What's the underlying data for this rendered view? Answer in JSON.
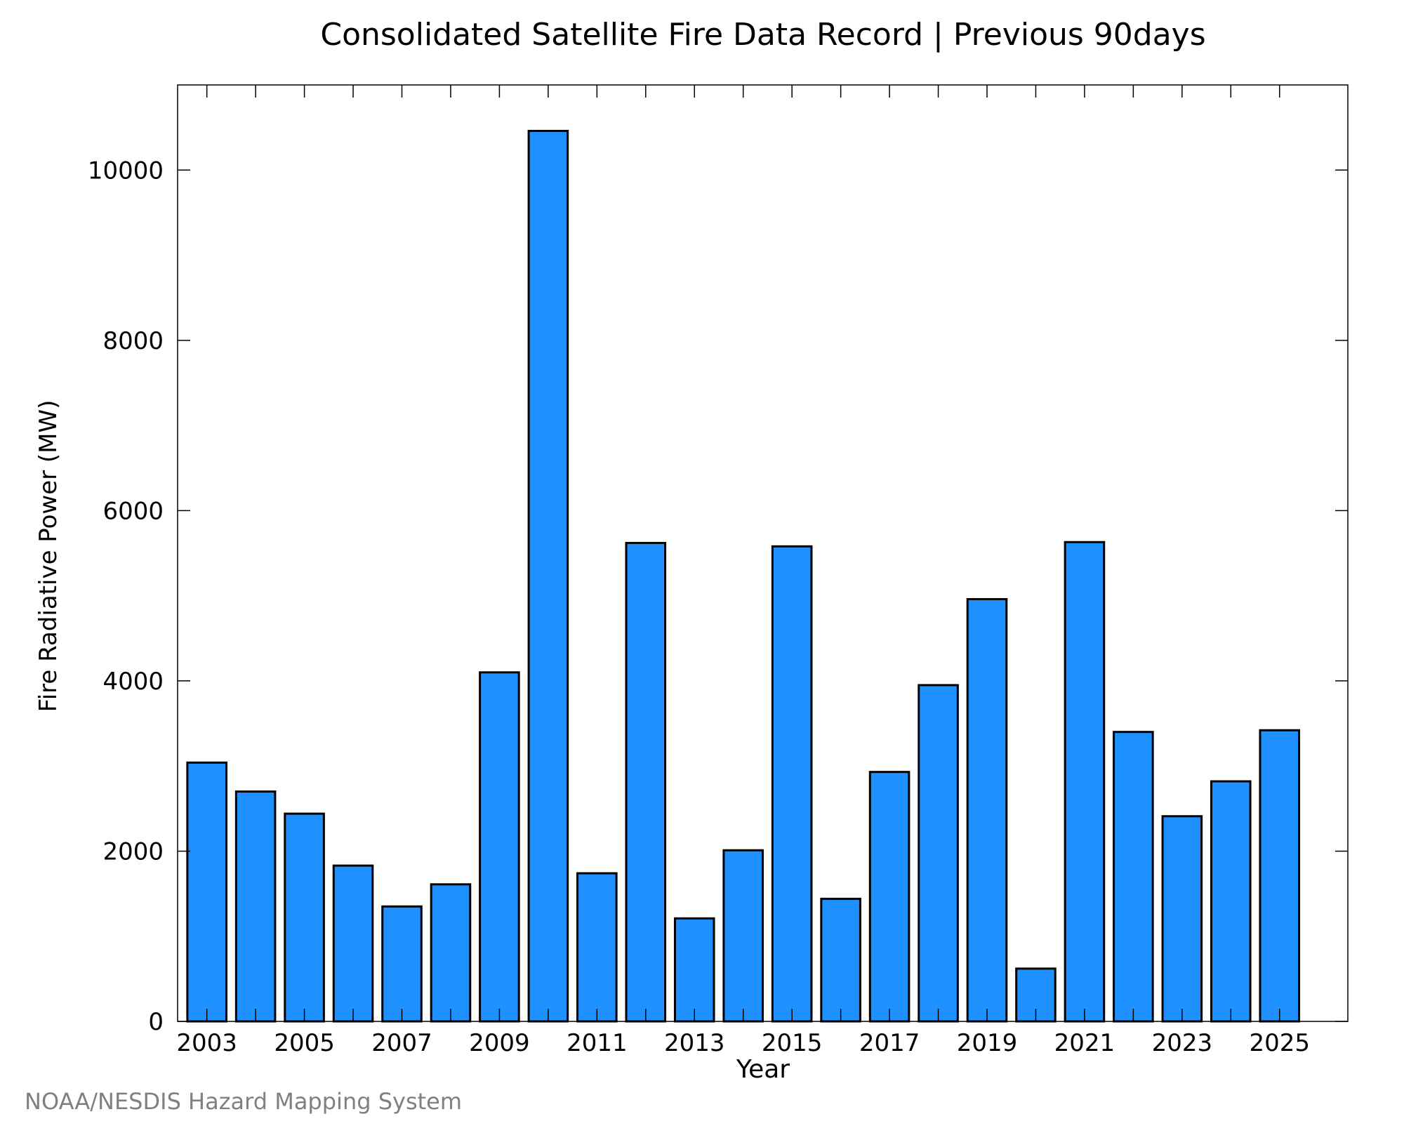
{
  "chart_data": {
    "type": "bar",
    "title": "Consolidated Satellite Fire Data Record | Previous 90days",
    "xlabel": "Year",
    "ylabel": "Fire Radiative Power (MW)",
    "credit": "NOAA/NESDIS Hazard Mapping System",
    "categories": [
      2003,
      2004,
      2005,
      2006,
      2007,
      2008,
      2009,
      2010,
      2011,
      2012,
      2013,
      2014,
      2015,
      2016,
      2017,
      2018,
      2019,
      2020,
      2021,
      2022,
      2023,
      2024,
      2025
    ],
    "values": [
      3040,
      2700,
      2440,
      1830,
      1350,
      1610,
      4100,
      10460,
      1740,
      5620,
      1210,
      2010,
      5580,
      1440,
      2930,
      3950,
      4960,
      620,
      5630,
      3400,
      2410,
      2820,
      3420
    ],
    "xticks": [
      2003,
      2005,
      2007,
      2009,
      2011,
      2013,
      2015,
      2017,
      2019,
      2021,
      2023,
      2025
    ],
    "yticks": [
      0,
      2000,
      4000,
      6000,
      8000,
      10000
    ],
    "xlim": [
      2002.4,
      2026.4
    ],
    "ylim": [
      0,
      11000
    ],
    "grid": false,
    "legend": "none",
    "colors": {
      "bar": "#1e90ff",
      "bar_edge": "#000000",
      "axes": "#000000",
      "credit": "#808080"
    }
  }
}
